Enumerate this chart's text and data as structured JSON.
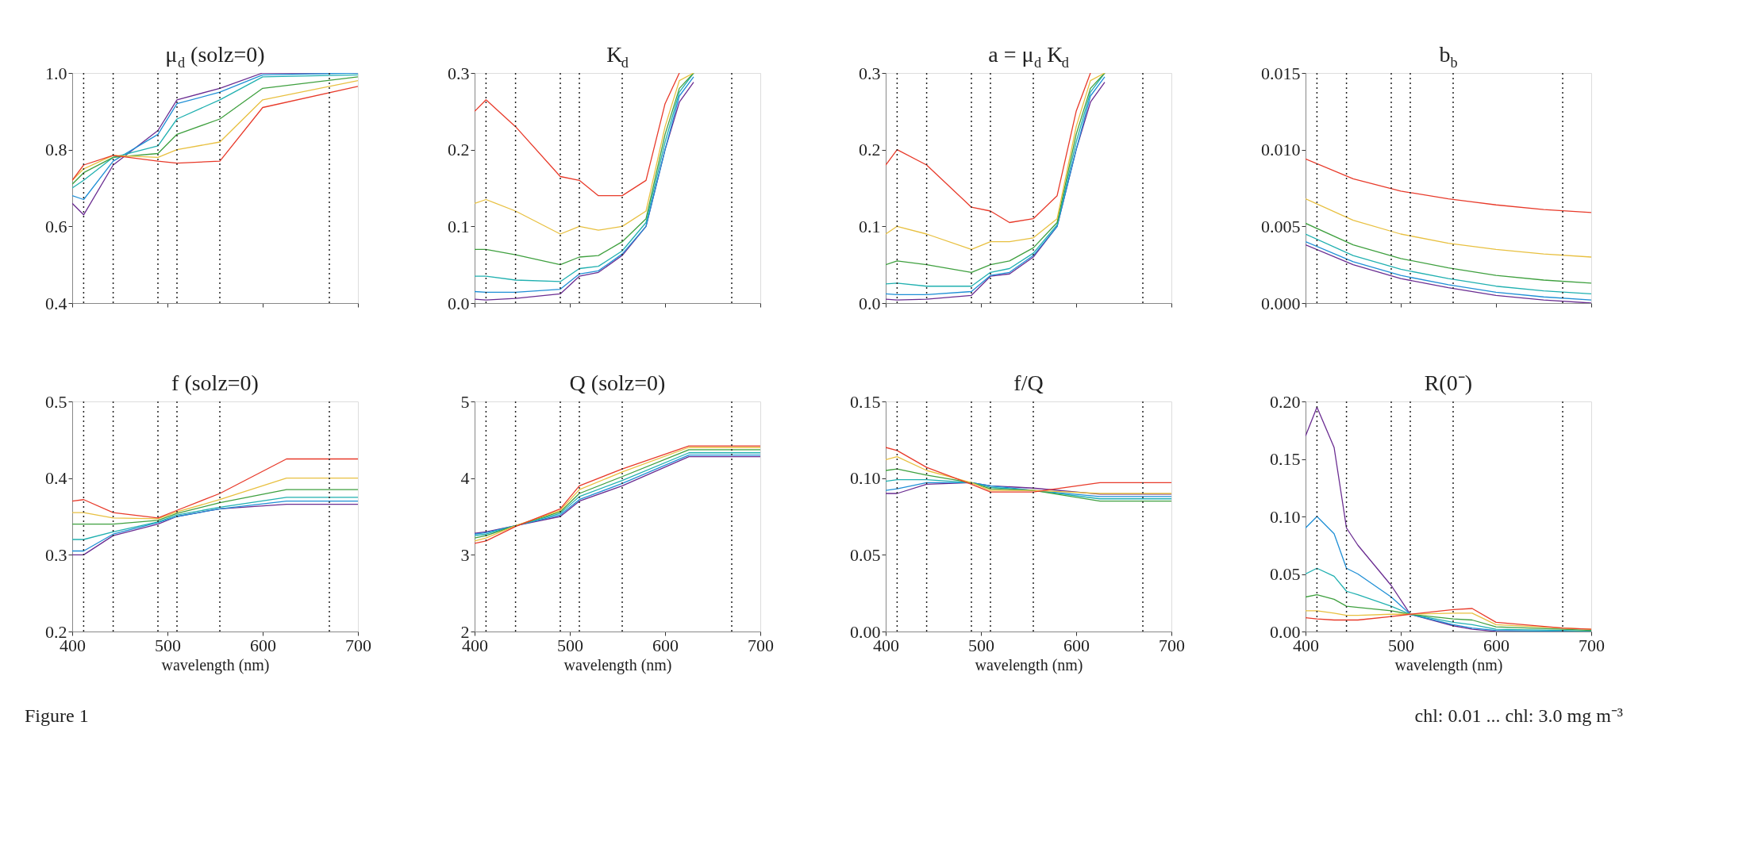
{
  "chart_data": [
    {
      "type": "line",
      "title": "μ$_{d}$ (solz=0)",
      "tick_labels": "y",
      "xlim": [
        400,
        700
      ],
      "xticks": [
        400,
        500,
        600,
        700
      ],
      "ylim": [
        0.4,
        1.0
      ],
      "yticks": [
        0.4,
        0.6,
        0.8,
        {
          "value": 1.0,
          "label": "1.0"
        }
      ],
      "x": [
        400,
        412,
        443,
        490,
        510,
        555,
        600,
        700
      ],
      "series": [
        {
          "color": "#6a2c91",
          "values": [
            0.66,
            0.63,
            0.76,
            0.85,
            0.93,
            0.96,
            1.0,
            1.0
          ]
        },
        {
          "color": "#1f8fd6",
          "values": [
            0.68,
            0.67,
            0.77,
            0.84,
            0.92,
            0.95,
            0.995,
            1.0
          ]
        },
        {
          "color": "#20b0b0",
          "values": [
            0.7,
            0.72,
            0.78,
            0.81,
            0.88,
            0.93,
            0.99,
            0.995
          ]
        },
        {
          "color": "#3fa03f",
          "values": [
            0.71,
            0.74,
            0.78,
            0.79,
            0.84,
            0.88,
            0.96,
            0.99
          ]
        },
        {
          "color": "#e8c040",
          "values": [
            0.72,
            0.75,
            0.785,
            0.78,
            0.8,
            0.82,
            0.93,
            0.98
          ]
        },
        {
          "color": "#e83a2a",
          "values": [
            0.72,
            0.76,
            0.785,
            0.77,
            0.765,
            0.77,
            0.91,
            0.965
          ]
        }
      ],
      "ref_lines": [
        {
          "axis": "x",
          "value": 412,
          "line_style": "dotted"
        },
        {
          "axis": "x",
          "value": 443,
          "line_style": "dotted"
        },
        {
          "axis": "x",
          "value": 490,
          "line_style": "dotted"
        },
        {
          "axis": "x",
          "value": 510,
          "line_style": "dotted"
        },
        {
          "axis": "x",
          "value": 555,
          "line_style": "dotted"
        },
        {
          "axis": "x",
          "value": 670,
          "line_style": "dotted"
        }
      ]
    },
    {
      "type": "line",
      "title": "K$_{d}$",
      "tick_labels": "y",
      "xlim": [
        400,
        700
      ],
      "xticks": [
        400,
        500,
        600,
        700
      ],
      "ylim": [
        0,
        0.3
      ],
      "yticks": [
        {
          "value": 0,
          "label": "0.0"
        },
        0.1,
        0.2,
        0.3
      ],
      "x": [
        400,
        412,
        443,
        490,
        510,
        530,
        555,
        580,
        600,
        615,
        630
      ],
      "series": [
        {
          "color": "#6a2c91",
          "values": [
            0.005,
            0.004,
            0.006,
            0.012,
            0.035,
            0.04,
            0.062,
            0.1,
            0.2,
            0.262,
            0.288
          ]
        },
        {
          "color": "#1f8fd6",
          "values": [
            0.015,
            0.014,
            0.014,
            0.018,
            0.038,
            0.042,
            0.064,
            0.1,
            0.2,
            0.27,
            0.295
          ]
        },
        {
          "color": "#20b0b0",
          "values": [
            0.035,
            0.035,
            0.03,
            0.028,
            0.045,
            0.048,
            0.068,
            0.105,
            0.21,
            0.275,
            0.3
          ]
        },
        {
          "color": "#3fa03f",
          "values": [
            0.07,
            0.07,
            0.063,
            0.05,
            0.06,
            0.062,
            0.08,
            0.11,
            0.22,
            0.28,
            0.3
          ]
        },
        {
          "color": "#e8c040",
          "values": [
            0.13,
            0.135,
            0.12,
            0.09,
            0.1,
            0.095,
            0.1,
            0.12,
            0.23,
            0.29,
            0.3
          ]
        },
        {
          "color": "#e83a2a",
          "values": [
            0.25,
            0.265,
            0.23,
            0.165,
            0.16,
            0.14,
            0.14,
            0.16,
            0.26,
            0.3,
            null
          ]
        }
      ],
      "ref_lines": [
        {
          "axis": "x",
          "value": 412,
          "line_style": "dotted"
        },
        {
          "axis": "x",
          "value": 443,
          "line_style": "dotted"
        },
        {
          "axis": "x",
          "value": 490,
          "line_style": "dotted"
        },
        {
          "axis": "x",
          "value": 510,
          "line_style": "dotted"
        },
        {
          "axis": "x",
          "value": 555,
          "line_style": "dotted"
        },
        {
          "axis": "x",
          "value": 670,
          "line_style": "dotted"
        }
      ]
    },
    {
      "type": "line",
      "title": "a = μ$_{d}$ K$_{d}$",
      "tick_labels": "y",
      "xlim": [
        400,
        700
      ],
      "xticks": [
        400,
        500,
        600,
        700
      ],
      "ylim": [
        0,
        0.3
      ],
      "yticks": [
        {
          "value": 0,
          "label": "0.0"
        },
        0.1,
        0.2,
        0.3
      ],
      "x": [
        400,
        412,
        443,
        490,
        510,
        530,
        555,
        580,
        600,
        615,
        630
      ],
      "series": [
        {
          "color": "#6a2c91",
          "values": [
            0.005,
            0.004,
            0.005,
            0.01,
            0.035,
            0.038,
            0.06,
            0.1,
            0.2,
            0.262,
            0.288
          ]
        },
        {
          "color": "#1f8fd6",
          "values": [
            0.012,
            0.011,
            0.011,
            0.015,
            0.036,
            0.04,
            0.062,
            0.1,
            0.2,
            0.27,
            0.295
          ]
        },
        {
          "color": "#20b0b0",
          "values": [
            0.025,
            0.026,
            0.022,
            0.022,
            0.04,
            0.045,
            0.065,
            0.102,
            0.21,
            0.275,
            0.3
          ]
        },
        {
          "color": "#3fa03f",
          "values": [
            0.05,
            0.055,
            0.05,
            0.04,
            0.05,
            0.055,
            0.072,
            0.105,
            0.22,
            0.28,
            0.3
          ]
        },
        {
          "color": "#e8c040",
          "values": [
            0.09,
            0.1,
            0.09,
            0.07,
            0.08,
            0.08,
            0.085,
            0.11,
            0.23,
            0.29,
            0.3
          ]
        },
        {
          "color": "#e83a2a",
          "values": [
            0.18,
            0.2,
            0.18,
            0.125,
            0.12,
            0.105,
            0.11,
            0.14,
            0.25,
            0.3,
            null
          ]
        }
      ],
      "ref_lines": [
        {
          "axis": "x",
          "value": 412,
          "line_style": "dotted"
        },
        {
          "axis": "x",
          "value": 443,
          "line_style": "dotted"
        },
        {
          "axis": "x",
          "value": 490,
          "line_style": "dotted"
        },
        {
          "axis": "x",
          "value": 510,
          "line_style": "dotted"
        },
        {
          "axis": "x",
          "value": 555,
          "line_style": "dotted"
        },
        {
          "axis": "x",
          "value": 670,
          "line_style": "dotted"
        }
      ]
    },
    {
      "type": "line",
      "title": "b$_{b}$",
      "tick_labels": "y",
      "xlim": [
        400,
        700
      ],
      "xticks": [
        400,
        500,
        600,
        700
      ],
      "ylim": [
        0,
        0.015
      ],
      "yticks": [
        {
          "value": 0,
          "label": "0.000"
        },
        {
          "value": 0.005,
          "label": "0.005"
        },
        {
          "value": 0.01,
          "label": "0.010"
        },
        {
          "value": 0.015,
          "label": "0.015"
        }
      ],
      "x": [
        400,
        450,
        500,
        550,
        600,
        650,
        700
      ],
      "series": [
        {
          "color": "#6a2c91",
          "values": [
            0.0038,
            0.0025,
            0.0016,
            0.001,
            0.0005,
            0.0002,
            0.0
          ]
        },
        {
          "color": "#1f8fd6",
          "values": [
            0.004,
            0.0027,
            0.0018,
            0.0012,
            0.0007,
            0.0004,
            0.0002
          ]
        },
        {
          "color": "#20b0b0",
          "values": [
            0.0045,
            0.0031,
            0.0022,
            0.0016,
            0.0011,
            0.0008,
            0.0006
          ]
        },
        {
          "color": "#3fa03f",
          "values": [
            0.0052,
            0.0038,
            0.0029,
            0.0023,
            0.0018,
            0.0015,
            0.0013
          ]
        },
        {
          "color": "#e8c040",
          "values": [
            0.0068,
            0.0054,
            0.0045,
            0.0039,
            0.0035,
            0.0032,
            0.003
          ]
        },
        {
          "color": "#e83a2a",
          "values": [
            0.0094,
            0.0081,
            0.0073,
            0.0068,
            0.0064,
            0.0061,
            0.0059
          ]
        }
      ],
      "ref_lines": [
        {
          "axis": "x",
          "value": 412,
          "line_style": "dotted"
        },
        {
          "axis": "x",
          "value": 443,
          "line_style": "dotted"
        },
        {
          "axis": "x",
          "value": 490,
          "line_style": "dotted"
        },
        {
          "axis": "x",
          "value": 510,
          "line_style": "dotted"
        },
        {
          "axis": "x",
          "value": 555,
          "line_style": "dotted"
        },
        {
          "axis": "x",
          "value": 670,
          "line_style": "dotted"
        }
      ]
    },
    {
      "type": "line",
      "title": "f (solz=0)",
      "xlabel": "wavelength (nm)",
      "xlim": [
        400,
        700
      ],
      "xticks": [
        400,
        500,
        600,
        700
      ],
      "ylim": [
        0.2,
        0.5
      ],
      "yticks": [
        0.2,
        0.3,
        0.4,
        0.5
      ],
      "x": [
        400,
        412,
        443,
        490,
        510,
        555,
        625,
        700
      ],
      "series": [
        {
          "color": "#6a2c91",
          "values": [
            0.3,
            0.3,
            0.325,
            0.34,
            0.35,
            0.36,
            0.366,
            0.366
          ]
        },
        {
          "color": "#1f8fd6",
          "values": [
            0.305,
            0.305,
            0.327,
            0.342,
            0.35,
            0.36,
            0.37,
            0.37
          ]
        },
        {
          "color": "#20b0b0",
          "values": [
            0.32,
            0.32,
            0.33,
            0.343,
            0.352,
            0.362,
            0.375,
            0.375
          ]
        },
        {
          "color": "#3fa03f",
          "values": [
            0.34,
            0.34,
            0.34,
            0.345,
            0.354,
            0.368,
            0.385,
            0.385
          ]
        },
        {
          "color": "#e8c040",
          "values": [
            0.355,
            0.355,
            0.348,
            0.347,
            0.356,
            0.372,
            0.4,
            0.4
          ]
        },
        {
          "color": "#e83a2a",
          "values": [
            0.37,
            0.372,
            0.355,
            0.348,
            0.358,
            0.38,
            0.425,
            0.425
          ]
        }
      ],
      "ref_lines": [
        {
          "axis": "x",
          "value": 412,
          "line_style": "dotted"
        },
        {
          "axis": "x",
          "value": 443,
          "line_style": "dotted"
        },
        {
          "axis": "x",
          "value": 490,
          "line_style": "dotted"
        },
        {
          "axis": "x",
          "value": 510,
          "line_style": "dotted"
        },
        {
          "axis": "x",
          "value": 555,
          "line_style": "dotted"
        },
        {
          "axis": "x",
          "value": 670,
          "line_style": "dotted"
        }
      ],
      "annotations": [
        "Figure 1"
      ]
    },
    {
      "type": "line",
      "title": "Q (solz=0)",
      "xlabel": "wavelength (nm)",
      "xlim": [
        400,
        700
      ],
      "xticks": [
        400,
        500,
        600,
        700
      ],
      "ylim": [
        2,
        5
      ],
      "yticks": [
        2,
        3,
        4,
        5
      ],
      "x": [
        400,
        412,
        443,
        490,
        510,
        555,
        625,
        700
      ],
      "series": [
        {
          "color": "#6a2c91",
          "values": [
            3.28,
            3.3,
            3.38,
            3.5,
            3.7,
            3.9,
            4.28,
            4.28
          ]
        },
        {
          "color": "#1f8fd6",
          "values": [
            3.27,
            3.29,
            3.38,
            3.52,
            3.72,
            3.93,
            4.3,
            4.3
          ]
        },
        {
          "color": "#20b0b0",
          "values": [
            3.25,
            3.27,
            3.38,
            3.54,
            3.76,
            3.97,
            4.33,
            4.33
          ]
        },
        {
          "color": "#3fa03f",
          "values": [
            3.22,
            3.25,
            3.38,
            3.56,
            3.8,
            4.02,
            4.37,
            4.37
          ]
        },
        {
          "color": "#e8c040",
          "values": [
            3.18,
            3.22,
            3.38,
            3.58,
            3.85,
            4.08,
            4.4,
            4.4
          ]
        },
        {
          "color": "#e83a2a",
          "values": [
            3.15,
            3.18,
            3.37,
            3.6,
            3.9,
            4.12,
            4.42,
            4.42
          ]
        }
      ],
      "ref_lines": [
        {
          "axis": "x",
          "value": 412,
          "line_style": "dotted"
        },
        {
          "axis": "x",
          "value": 443,
          "line_style": "dotted"
        },
        {
          "axis": "x",
          "value": 490,
          "line_style": "dotted"
        },
        {
          "axis": "x",
          "value": 510,
          "line_style": "dotted"
        },
        {
          "axis": "x",
          "value": 555,
          "line_style": "dotted"
        },
        {
          "axis": "x",
          "value": 670,
          "line_style": "dotted"
        }
      ]
    },
    {
      "type": "line",
      "title": "f/Q",
      "xlabel": "wavelength (nm)",
      "xlim": [
        400,
        700
      ],
      "xticks": [
        400,
        500,
        600,
        700
      ],
      "ylim": [
        0,
        0.15
      ],
      "yticks": [
        {
          "value": 0,
          "label": "0.00"
        },
        0.05,
        {
          "value": 0.1,
          "label": "0.10"
        },
        0.15
      ],
      "x": [
        400,
        412,
        443,
        490,
        510,
        555,
        625,
        700
      ],
      "series": [
        {
          "color": "#6a2c91",
          "values": [
            0.09,
            0.09,
            0.096,
            0.097,
            0.095,
            0.0935,
            0.0895,
            0.0895
          ]
        },
        {
          "color": "#1f8fd6",
          "values": [
            0.092,
            0.093,
            0.097,
            0.097,
            0.095,
            0.092,
            0.088,
            0.088
          ]
        },
        {
          "color": "#20b0b0",
          "values": [
            0.098,
            0.099,
            0.099,
            0.097,
            0.094,
            0.092,
            0.0865,
            0.0865
          ]
        },
        {
          "color": "#3fa03f",
          "values": [
            0.105,
            0.106,
            0.102,
            0.097,
            0.093,
            0.092,
            0.085,
            0.085
          ]
        },
        {
          "color": "#e8c040",
          "values": [
            0.112,
            0.114,
            0.105,
            0.097,
            0.092,
            0.092,
            0.09,
            0.09
          ]
        },
        {
          "color": "#e83a2a",
          "values": [
            0.12,
            0.118,
            0.107,
            0.096,
            0.091,
            0.091,
            0.097,
            0.097
          ]
        }
      ],
      "ref_lines": [
        {
          "axis": "x",
          "value": 412,
          "line_style": "dotted"
        },
        {
          "axis": "x",
          "value": 443,
          "line_style": "dotted"
        },
        {
          "axis": "x",
          "value": 490,
          "line_style": "dotted"
        },
        {
          "axis": "x",
          "value": 510,
          "line_style": "dotted"
        },
        {
          "axis": "x",
          "value": 555,
          "line_style": "dotted"
        },
        {
          "axis": "x",
          "value": 670,
          "line_style": "dotted"
        }
      ]
    },
    {
      "type": "line",
      "title": "R(0⁻)",
      "xlabel": "wavelength (nm)",
      "xlim": [
        400,
        700
      ],
      "xticks": [
        400,
        500,
        600,
        700
      ],
      "ylim": [
        0,
        0.2
      ],
      "yticks": [
        {
          "value": 0,
          "label": "0.00"
        },
        0.05,
        {
          "value": 0.1,
          "label": "0.10"
        },
        0.15,
        {
          "value": 0.2,
          "label": "0.20"
        }
      ],
      "x": [
        400,
        412,
        430,
        443,
        455,
        490,
        510,
        555,
        575,
        600,
        670,
        700
      ],
      "series": [
        {
          "color": "#6a2c91",
          "values": [
            0.17,
            0.195,
            0.16,
            0.09,
            0.075,
            0.04,
            0.015,
            0.005,
            0.002,
            0.0,
            0.0,
            0.0
          ]
        },
        {
          "color": "#1f8fd6",
          "values": [
            0.09,
            0.1,
            0.085,
            0.055,
            0.05,
            0.03,
            0.015,
            0.006,
            0.003,
            0.001,
            0.0,
            0.0
          ]
        },
        {
          "color": "#20b0b0",
          "values": [
            0.05,
            0.055,
            0.048,
            0.035,
            0.032,
            0.022,
            0.015,
            0.008,
            0.006,
            0.002,
            0.001,
            0.0
          ]
        },
        {
          "color": "#3fa03f",
          "values": [
            0.03,
            0.032,
            0.028,
            0.022,
            0.021,
            0.018,
            0.015,
            0.011,
            0.01,
            0.004,
            0.002,
            0.001
          ]
        },
        {
          "color": "#e8c040",
          "values": [
            0.018,
            0.018,
            0.016,
            0.014,
            0.014,
            0.015,
            0.015,
            0.016,
            0.016,
            0.006,
            0.003,
            0.002
          ]
        },
        {
          "color": "#e83a2a",
          "values": [
            0.012,
            0.011,
            0.01,
            0.01,
            0.01,
            0.013,
            0.015,
            0.019,
            0.02,
            0.008,
            0.003,
            0.002
          ]
        }
      ],
      "ref_lines": [
        {
          "axis": "x",
          "value": 412,
          "line_style": "dotted"
        },
        {
          "axis": "x",
          "value": 443,
          "line_style": "dotted"
        },
        {
          "axis": "x",
          "value": 490,
          "line_style": "dotted"
        },
        {
          "axis": "x",
          "value": 510,
          "line_style": "dotted"
        },
        {
          "axis": "x",
          "value": 555,
          "line_style": "dotted"
        },
        {
          "axis": "x",
          "value": 670,
          "line_style": "dotted"
        }
      ],
      "annotations": [
        "chl: 0.01 ... chl: 3.0 mg m⁻³"
      ]
    }
  ]
}
